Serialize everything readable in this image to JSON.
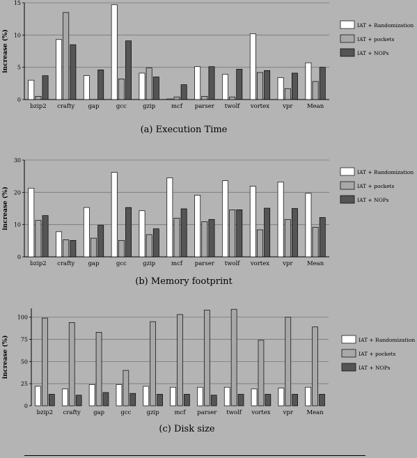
{
  "legend_labels": [
    "IAT + Randomization",
    "IAT + pockets",
    "IAT + NOPs"
  ],
  "colors": {
    "background": "#b4b4b4",
    "series": [
      "#ffffff",
      "#a8a8a8",
      "#555555"
    ]
  },
  "chart_data": [
    {
      "type": "bar",
      "title": "(a) Execution Time",
      "ylabel": "increase (%)",
      "xlabel": "",
      "categories": [
        "bzip2",
        "crafty",
        "gap",
        "gcc",
        "gzip",
        "mcf",
        "parser",
        "twolf",
        "vortex",
        "vpr",
        "Mean"
      ],
      "ylim": [
        0,
        15
      ],
      "yticks": [
        0,
        5,
        10,
        15
      ],
      "grid": true,
      "legend": "right",
      "series": [
        {
          "name": "IAT + Randomization",
          "values": [
            3.0,
            9.3,
            3.7,
            14.7,
            4.1,
            0.1,
            5.1,
            3.9,
            10.2,
            3.4,
            5.7
          ]
        },
        {
          "name": "IAT + pockets",
          "values": [
            0.5,
            13.5,
            0.0,
            3.2,
            4.9,
            0.4,
            0.5,
            0.4,
            4.2,
            1.7,
            2.8
          ]
        },
        {
          "name": "IAT + NOPs",
          "values": [
            3.7,
            8.5,
            4.6,
            9.1,
            3.5,
            2.3,
            5.1,
            4.7,
            4.5,
            4.1,
            5.0
          ]
        }
      ]
    },
    {
      "type": "bar",
      "title": "(b) Memory footprint",
      "ylabel": "increase (%)",
      "xlabel": "",
      "categories": [
        "bzip2",
        "crafty",
        "gap",
        "gcc",
        "gzip",
        "mcf",
        "parser",
        "twolf",
        "vortex",
        "vpr",
        "Mean"
      ],
      "ylim": [
        0,
        30
      ],
      "yticks": [
        0,
        10,
        20,
        30
      ],
      "grid": true,
      "legend": "right",
      "series": [
        {
          "name": "IAT + Randomization",
          "values": [
            21.3,
            7.8,
            15.3,
            26.2,
            14.3,
            24.5,
            19.1,
            23.6,
            21.9,
            23.2,
            19.7
          ]
        },
        {
          "name": "IAT + pockets",
          "values": [
            11.3,
            5.3,
            5.8,
            5.1,
            6.9,
            12.0,
            10.9,
            14.6,
            8.4,
            11.6,
            9.2
          ]
        },
        {
          "name": "IAT + NOPs",
          "values": [
            12.8,
            5.1,
            9.8,
            15.3,
            8.7,
            14.9,
            11.6,
            14.6,
            15.1,
            15.0,
            12.2
          ]
        }
      ]
    },
    {
      "type": "bar",
      "title": "(c) Disk size",
      "ylabel": "increase (%)",
      "xlabel": "",
      "categories": [
        "bzip2",
        "crafty",
        "gap",
        "gcc",
        "gzip",
        "mcf",
        "parser",
        "twolf",
        "vortex",
        "vpr",
        "Mean"
      ],
      "ylim": [
        0,
        110
      ],
      "yticks": [
        0,
        25,
        50,
        75,
        100
      ],
      "grid": true,
      "legend": "right",
      "series": [
        {
          "name": "IAT + Randomization",
          "values": [
            22,
            19,
            24,
            24,
            22,
            21,
            21,
            21,
            19,
            20,
            21
          ]
        },
        {
          "name": "IAT + pockets",
          "values": [
            99,
            94,
            83,
            40,
            95,
            103,
            108,
            109,
            74,
            100,
            89
          ]
        },
        {
          "name": "IAT + NOPs",
          "values": [
            13,
            12,
            15,
            14,
            13,
            13,
            12,
            13,
            13,
            13,
            13
          ]
        }
      ]
    }
  ]
}
